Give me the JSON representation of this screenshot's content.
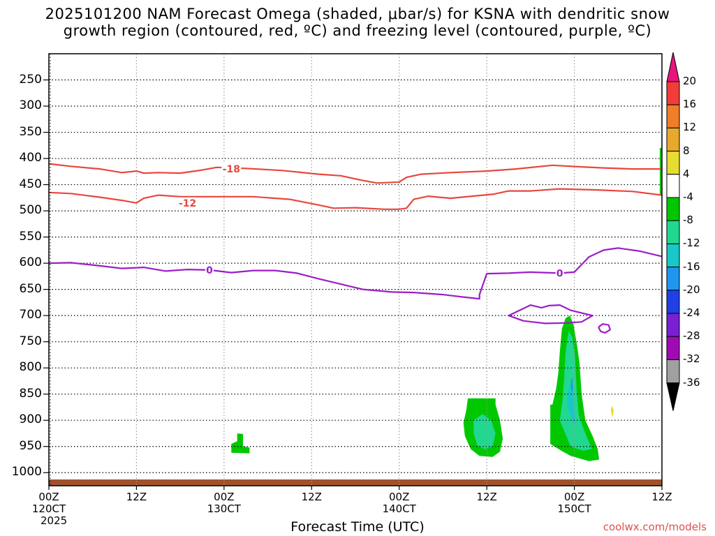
{
  "title_line1": "2025101200 NAM Forecast Omega (shaded, μbar/s) for KSNA with dendritic snow",
  "title_line2": "growth region (contoured, red, ºC) and freezing level (contoured, purple, ºC)",
  "credit": "coolwx.com/models",
  "chart_data": {
    "type": "area",
    "title": "2025101200 NAM Forecast Omega (shaded, μbar/s) for KSNA with dendritic snow growth region (contoured, red, ºC) and freezing level (contoured, purple, ºC)",
    "xlabel": "Forecast Time (UTC)",
    "ylabel": "",
    "y_axis": "pressure (hPa), inverted",
    "ylim": [
      1025,
      200
    ],
    "y_ticks": [
      "250",
      "300",
      "350",
      "400",
      "450",
      "500",
      "550",
      "600",
      "650",
      "700",
      "750",
      "800",
      "850",
      "900",
      "950",
      "1000"
    ],
    "x_ticks": [
      {
        "hour": 0,
        "line1": "00Z",
        "line2": "120CT",
        "line3": "2025"
      },
      {
        "hour": 12,
        "line1": "12Z",
        "line2": "",
        "line3": ""
      },
      {
        "hour": 24,
        "line1": "00Z",
        "line2": "130CT",
        "line3": ""
      },
      {
        "hour": 36,
        "line1": "12Z",
        "line2": "",
        "line3": ""
      },
      {
        "hour": 48,
        "line1": "00Z",
        "line2": "140CT",
        "line3": ""
      },
      {
        "hour": 60,
        "line1": "12Z",
        "line2": "",
        "line3": ""
      },
      {
        "hour": 72,
        "line1": "00Z",
        "line2": "150CT",
        "line3": ""
      },
      {
        "hour": 84,
        "line1": "12Z",
        "line2": "",
        "line3": ""
      }
    ],
    "xlim": [
      0,
      84
    ],
    "grid": true,
    "contours": [
      {
        "level": -18,
        "color": "#e8473e",
        "label": "-18",
        "label_at": [
          25,
          420
        ],
        "points": [
          [
            0,
            410
          ],
          [
            3,
            415
          ],
          [
            7,
            420
          ],
          [
            10,
            427
          ],
          [
            12,
            424
          ],
          [
            13,
            428
          ],
          [
            15,
            427
          ],
          [
            18,
            428
          ],
          [
            21,
            422
          ],
          [
            23,
            417
          ],
          [
            27,
            419
          ],
          [
            32,
            423
          ],
          [
            37,
            430
          ],
          [
            40,
            433
          ],
          [
            43,
            442
          ],
          [
            45,
            447
          ],
          [
            48,
            445
          ],
          [
            49,
            436
          ],
          [
            51,
            430
          ],
          [
            55,
            427
          ],
          [
            60,
            424
          ],
          [
            64,
            420
          ],
          [
            69,
            413
          ],
          [
            73,
            416
          ],
          [
            76,
            418
          ],
          [
            80,
            420
          ],
          [
            84,
            420
          ]
        ]
      },
      {
        "level": -12,
        "color": "#e8473e",
        "label": "-12",
        "label_at": [
          19,
          485
        ],
        "points": [
          [
            0,
            465
          ],
          [
            3,
            467
          ],
          [
            7,
            474
          ],
          [
            10,
            480
          ],
          [
            12,
            485
          ],
          [
            13,
            476
          ],
          [
            15,
            470
          ],
          [
            18,
            473
          ],
          [
            22,
            473
          ],
          [
            28,
            473
          ],
          [
            33,
            478
          ],
          [
            37,
            489
          ],
          [
            39,
            495
          ],
          [
            42,
            494
          ],
          [
            46,
            497
          ],
          [
            48,
            497
          ],
          [
            49,
            495
          ],
          [
            50,
            478
          ],
          [
            52,
            472
          ],
          [
            55,
            476
          ],
          [
            58,
            472
          ],
          [
            61,
            468
          ],
          [
            63,
            462
          ],
          [
            66,
            462
          ],
          [
            70,
            458
          ],
          [
            75,
            460
          ],
          [
            80,
            463
          ],
          [
            84,
            470
          ]
        ]
      },
      {
        "level": 0,
        "color": "#9b1ec8",
        "label": "0",
        "label_at": [
          22,
          613
        ],
        "points": [
          [
            0,
            600
          ],
          [
            3,
            599
          ],
          [
            7,
            605
          ],
          [
            10,
            610
          ],
          [
            13,
            608
          ],
          [
            16,
            615
          ],
          [
            19,
            612
          ],
          [
            22,
            613
          ],
          [
            25,
            618
          ],
          [
            28,
            614
          ],
          [
            31,
            614
          ],
          [
            34,
            619
          ],
          [
            37,
            630
          ],
          [
            40,
            640
          ],
          [
            43,
            650
          ],
          [
            47,
            655
          ],
          [
            50,
            656
          ],
          [
            54,
            660
          ],
          [
            57,
            665
          ],
          [
            59,
            668
          ],
          [
            59,
            660
          ],
          [
            60,
            620
          ],
          [
            63,
            619
          ],
          [
            66,
            617
          ],
          [
            70,
            619
          ],
          [
            72,
            617
          ],
          [
            74,
            588
          ],
          [
            76,
            575
          ],
          [
            78,
            571
          ],
          [
            81,
            577
          ],
          [
            84,
            587
          ]
        ]
      },
      {
        "level": 0,
        "color": "#9b1ec8",
        "label": "0",
        "label_at": [
          70,
          619
        ],
        "points": [
          [
            63,
            700
          ],
          [
            64.5,
            690
          ],
          [
            66,
            680
          ],
          [
            67.5,
            685
          ],
          [
            68.5,
            681
          ],
          [
            70,
            680
          ],
          [
            71.5,
            690
          ],
          [
            73,
            695
          ],
          [
            74.5,
            700
          ],
          [
            73,
            712
          ],
          [
            71,
            714
          ],
          [
            68,
            715
          ],
          [
            65,
            710
          ],
          [
            63,
            700
          ]
        ]
      },
      {
        "level": 0,
        "color": "#9b1ec8",
        "label": "",
        "label_at": [
          76,
          730
        ],
        "points": [
          [
            75.3,
            722
          ],
          [
            75.9,
            716
          ],
          [
            76.7,
            718
          ],
          [
            76.9,
            727
          ],
          [
            76.2,
            733
          ],
          [
            75.6,
            730
          ],
          [
            75.3,
            722
          ]
        ]
      }
    ],
    "omega_levels": [
      {
        "value": 20,
        "color": "#e8147c"
      },
      {
        "value": 16,
        "color": "#f23c38"
      },
      {
        "value": 12,
        "color": "#f07d28"
      },
      {
        "value": 8,
        "color": "#e8a82c"
      },
      {
        "value": 4,
        "color": "#e6dc32"
      },
      {
        "value": -4,
        "color": "#ffffff"
      },
      {
        "value": -8,
        "color": "#00c800"
      },
      {
        "value": -12,
        "color": "#20d890"
      },
      {
        "value": -16,
        "color": "#18c8c8"
      },
      {
        "value": -20,
        "color": "#1e96f0"
      },
      {
        "value": -24,
        "color": "#2040e6"
      },
      {
        "value": -28,
        "color": "#7820d2"
      },
      {
        "value": -32,
        "color": "#a00ab4"
      },
      {
        "value": -36,
        "color": "#a0a0a0"
      }
    ],
    "colorbar_labels": [
      "20",
      "16",
      "12",
      "8",
      "4",
      "-4",
      "-8",
      "-12",
      "-16",
      "-20",
      "-24",
      "-28",
      "-32",
      "-36"
    ],
    "omega_regions": [
      {
        "value": -8,
        "points": [
          [
            57.4,
            858
          ],
          [
            57.2,
            880
          ],
          [
            56.8,
            905
          ],
          [
            57.0,
            930
          ],
          [
            57.8,
            955
          ],
          [
            59.0,
            968
          ],
          [
            60.8,
            970
          ],
          [
            61.8,
            960
          ],
          [
            62.2,
            935
          ],
          [
            61.8,
            900
          ],
          [
            61.2,
            870
          ],
          [
            61.2,
            858
          ]
        ]
      },
      {
        "value": -12,
        "points": [
          [
            58.2,
            900
          ],
          [
            58.2,
            925
          ],
          [
            58.7,
            948
          ],
          [
            59.7,
            955
          ],
          [
            60.8,
            950
          ],
          [
            61.2,
            925
          ],
          [
            60.6,
            900
          ],
          [
            59.4,
            888
          ]
        ]
      },
      {
        "value": -8,
        "points": [
          [
            68.7,
            870
          ],
          [
            68.7,
            945
          ],
          [
            70.2,
            958
          ],
          [
            71.5,
            968
          ],
          [
            74.0,
            978
          ],
          [
            75.4,
            975
          ],
          [
            75.2,
            955
          ],
          [
            74.5,
            930
          ],
          [
            73.5,
            900
          ],
          [
            73.0,
            850
          ],
          [
            72.7,
            790
          ],
          [
            72.4,
            760
          ],
          [
            71.9,
            718
          ],
          [
            71.4,
            700
          ],
          [
            70.8,
            705
          ],
          [
            70.3,
            725
          ],
          [
            70.0,
            770
          ],
          [
            69.8,
            810
          ],
          [
            69.5,
            840
          ],
          [
            69.0,
            870
          ]
        ]
      },
      {
        "value": -12,
        "points": [
          [
            70.0,
            900
          ],
          [
            70.6,
            920
          ],
          [
            71.5,
            950
          ],
          [
            73.2,
            958
          ],
          [
            74.4,
            955
          ],
          [
            73.5,
            925
          ],
          [
            72.6,
            890
          ],
          [
            72.3,
            840
          ],
          [
            72.1,
            780
          ],
          [
            71.7,
            740
          ],
          [
            71.2,
            730
          ],
          [
            70.8,
            770
          ],
          [
            70.6,
            820
          ],
          [
            70.4,
            860
          ]
        ]
      },
      {
        "value": -16,
        "points": [
          [
            71.0,
            870
          ],
          [
            71.8,
            905
          ],
          [
            72.2,
            910
          ],
          [
            71.9,
            860
          ],
          [
            71.6,
            830
          ],
          [
            71.2,
            840
          ]
        ]
      },
      {
        "value": -20,
        "points": [
          [
            71.5,
            835
          ],
          [
            71.7,
            850
          ],
          [
            71.8,
            838
          ],
          [
            71.7,
            818
          ],
          [
            71.55,
            822
          ]
        ]
      },
      {
        "value": -8,
        "points": [
          [
            25.8,
            925
          ],
          [
            25.8,
            940
          ],
          [
            25.0,
            945
          ],
          [
            25.0,
            962
          ],
          [
            27.5,
            963
          ],
          [
            27.5,
            952
          ],
          [
            26.6,
            950
          ],
          [
            26.6,
            926
          ]
        ]
      },
      {
        "value": 4,
        "points": [
          [
            77.0,
            880
          ],
          [
            77.2,
            895
          ],
          [
            77.4,
            882
          ],
          [
            77.2,
            872
          ]
        ]
      },
      {
        "value": -8,
        "points": [
          [
            83.7,
            380
          ],
          [
            83.7,
            470
          ],
          [
            84,
            470
          ],
          [
            84,
            380
          ]
        ]
      }
    ],
    "terrain": {
      "color": "#a0522d",
      "surface_pressure": 1013
    }
  }
}
